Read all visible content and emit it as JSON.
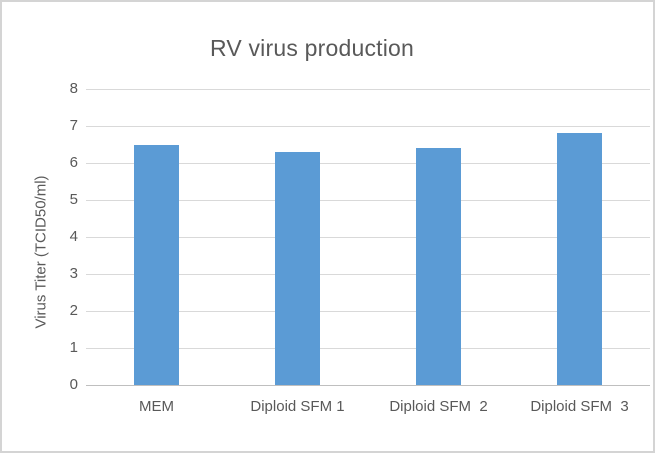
{
  "chart_data": {
    "type": "bar",
    "title": "RV virus production",
    "categories": [
      "MEM",
      "Diploid SFM 1",
      "Diploid SFM  2",
      "Diploid SFM  3"
    ],
    "values": [
      6.5,
      6.3,
      6.4,
      6.8
    ],
    "xlabel": "",
    "ylabel": "Virus Titer (TCID50/ml)",
    "ylim": [
      0,
      8
    ],
    "y_ticks": [
      0,
      1,
      2,
      3,
      4,
      5,
      6,
      7,
      8
    ],
    "grid": true,
    "legend": false,
    "series_count": 1
  },
  "colors": {
    "bar": "#5B9BD5",
    "gridline": "#D9D9D9",
    "axis_line": "#BFBFBF",
    "text": "#595959",
    "background": "#FFFFFF",
    "frame_border": "#D4D4D4"
  }
}
